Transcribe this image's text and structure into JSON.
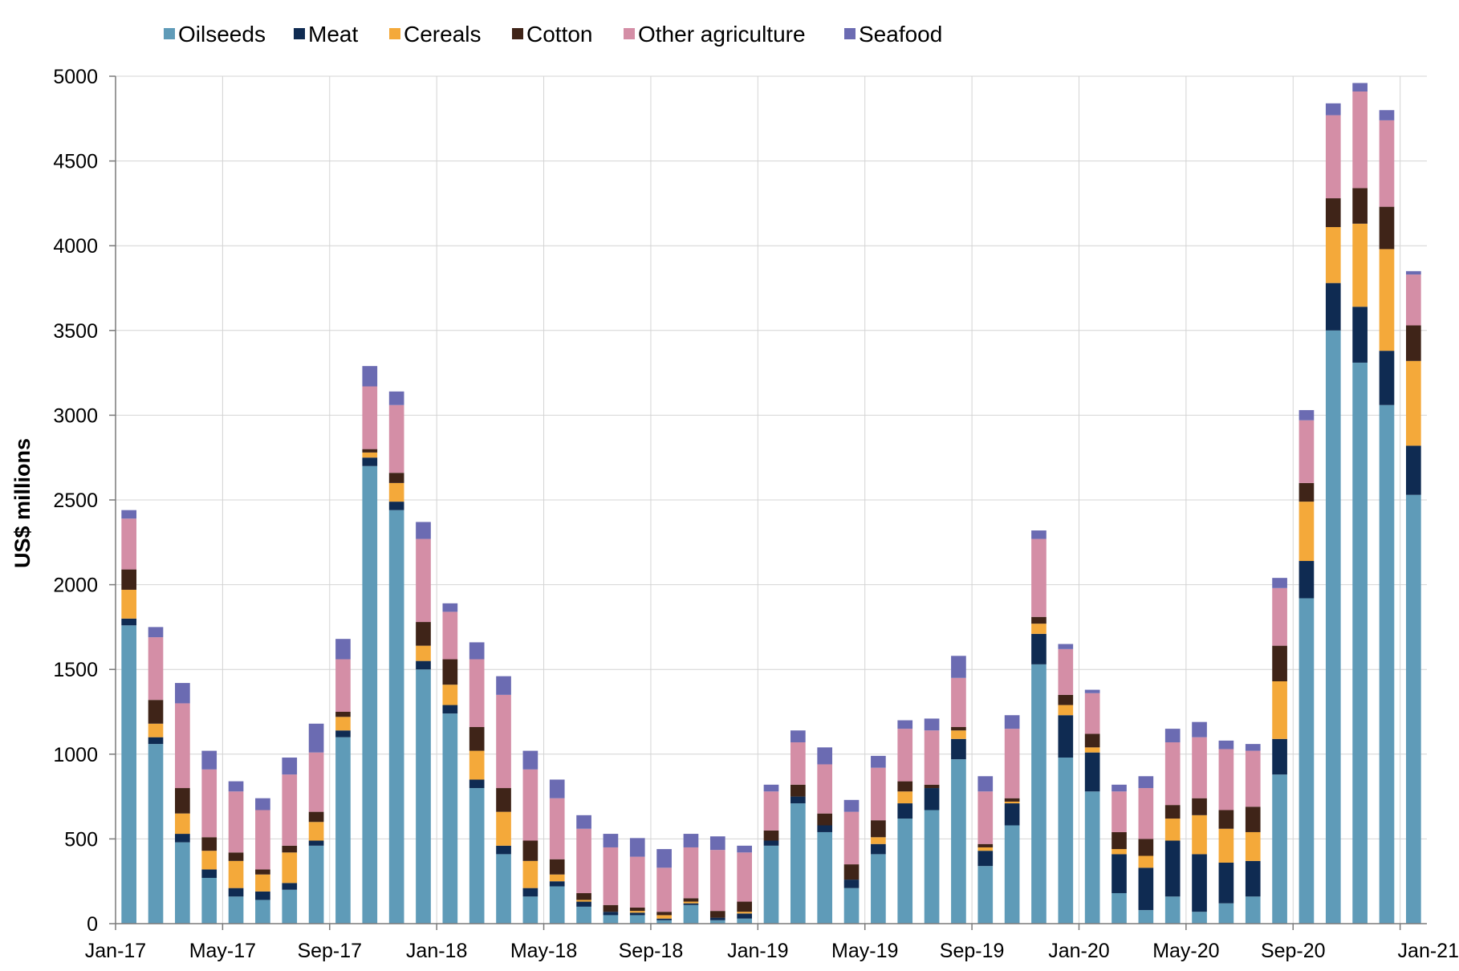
{
  "chart_data": {
    "type": "bar",
    "stacked": true,
    "ylabel": "US$ millions",
    "xlabel": "",
    "ylim": [
      0,
      5000
    ],
    "yticks": [
      0,
      500,
      1000,
      1500,
      2000,
      2500,
      3000,
      3500,
      4000,
      4500,
      5000
    ],
    "grid": true,
    "legend_position": "top",
    "categories": [
      "Jan-17",
      "Feb-17",
      "Mar-17",
      "Apr-17",
      "May-17",
      "Jun-17",
      "Jul-17",
      "Aug-17",
      "Sep-17",
      "Oct-17",
      "Nov-17",
      "Dec-17",
      "Jan-18",
      "Feb-18",
      "Mar-18",
      "Apr-18",
      "May-18",
      "Jun-18",
      "Jul-18",
      "Aug-18",
      "Sep-18",
      "Oct-18",
      "Nov-18",
      "Dec-18",
      "Jan-19",
      "Feb-19",
      "Mar-19",
      "Apr-19",
      "May-19",
      "Jun-19",
      "Jul-19",
      "Aug-19",
      "Sep-19",
      "Oct-19",
      "Nov-19",
      "Dec-19",
      "Jan-20",
      "Feb-20",
      "Mar-20",
      "Apr-20",
      "May-20",
      "Jun-20",
      "Jul-20",
      "Aug-20",
      "Sep-20",
      "Oct-20",
      "Nov-20",
      "Dec-20",
      "Jan-21"
    ],
    "x_tick_labels": [
      "Jan-17",
      "May-17",
      "Sep-17",
      "Jan-18",
      "May-18",
      "Sep-18",
      "Jan-19",
      "May-19",
      "Sep-19",
      "Jan-20",
      "May-20",
      "Sep-20",
      "Jan-21"
    ],
    "series": [
      {
        "name": "Oilseeds",
        "color": "#5f9bb8",
        "values": [
          1760,
          1060,
          480,
          270,
          160,
          140,
          200,
          460,
          1100,
          2700,
          2440,
          1500,
          1240,
          800,
          410,
          160,
          220,
          100,
          50,
          50,
          20,
          110,
          20,
          30,
          460,
          710,
          540,
          210,
          410,
          620,
          670,
          970,
          340,
          580,
          1530,
          980,
          780,
          180,
          80,
          160,
          70,
          120,
          160,
          880,
          1920,
          3500,
          3310,
          3060,
          2530
        ]
      },
      {
        "name": "Meat",
        "color": "#0f2b52",
        "values": [
          40,
          40,
          50,
          50,
          50,
          50,
          40,
          30,
          40,
          50,
          50,
          50,
          50,
          50,
          50,
          50,
          30,
          30,
          20,
          15,
          10,
          10,
          15,
          30,
          30,
          40,
          40,
          50,
          60,
          90,
          130,
          120,
          90,
          130,
          180,
          250,
          230,
          230,
          250,
          330,
          340,
          240,
          210,
          210,
          220,
          280,
          330,
          320,
          290
        ]
      },
      {
        "name": "Cereals",
        "color": "#f4a93a",
        "values": [
          170,
          80,
          120,
          110,
          160,
          100,
          180,
          110,
          80,
          30,
          110,
          90,
          120,
          170,
          200,
          160,
          40,
          10,
          0,
          10,
          20,
          10,
          0,
          10,
          0,
          0,
          0,
          0,
          40,
          70,
          0,
          50,
          20,
          10,
          60,
          60,
          30,
          30,
          70,
          130,
          230,
          200,
          170,
          340,
          350,
          330,
          490,
          600,
          500
        ]
      },
      {
        "name": "Cotton",
        "color": "#3f2418",
        "values": [
          120,
          140,
          150,
          80,
          50,
          30,
          40,
          60,
          30,
          20,
          60,
          140,
          150,
          140,
          140,
          120,
          90,
          40,
          40,
          20,
          20,
          20,
          40,
          60,
          60,
          70,
          70,
          90,
          100,
          60,
          20,
          20,
          20,
          20,
          40,
          60,
          80,
          100,
          100,
          80,
          100,
          110,
          150,
          210,
          110,
          170,
          210,
          250,
          210
        ]
      },
      {
        "name": "Other agriculture",
        "color": "#d48ea6",
        "values": [
          300,
          370,
          500,
          400,
          360,
          350,
          420,
          350,
          310,
          370,
          400,
          490,
          280,
          400,
          550,
          420,
          360,
          380,
          340,
          300,
          260,
          300,
          360,
          290,
          230,
          250,
          290,
          310,
          310,
          310,
          320,
          290,
          310,
          410,
          460,
          270,
          240,
          240,
          300,
          370,
          360,
          360,
          330,
          340,
          370,
          490,
          570,
          510,
          300
        ]
      },
      {
        "name": "Seafood",
        "color": "#6b6bb2",
        "values": [
          50,
          60,
          120,
          110,
          60,
          70,
          100,
          170,
          120,
          120,
          80,
          100,
          50,
          100,
          110,
          110,
          110,
          80,
          80,
          110,
          110,
          80,
          80,
          40,
          40,
          70,
          100,
          70,
          70,
          50,
          70,
          130,
          90,
          80,
          50,
          30,
          20,
          40,
          70,
          80,
          90,
          50,
          40,
          60,
          60,
          70,
          50,
          60,
          20
        ]
      }
    ]
  }
}
